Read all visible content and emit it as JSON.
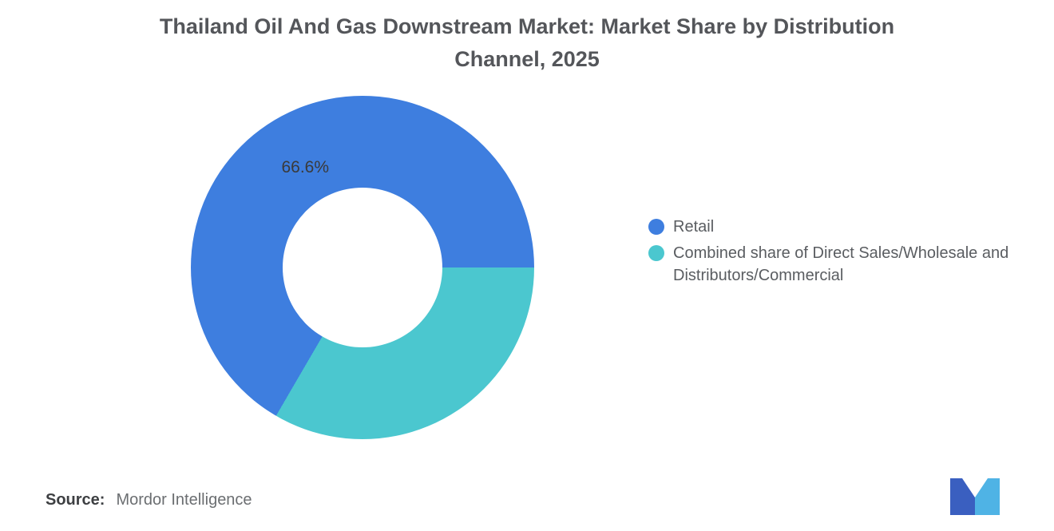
{
  "title": "Thailand Oil And Gas Downstream Market: Market Share by Distribution Channel, 2025",
  "chart_data": {
    "type": "pie",
    "donut": true,
    "title": "Thailand Oil And Gas Downstream Market: Market Share by Distribution Channel, 2025",
    "start_angle_deg": 210.24,
    "legend_position": "right",
    "segments": [
      {
        "label": "Retail",
        "value": 66.6,
        "color": "#3e7edf",
        "data_label": "66.6%"
      },
      {
        "label": "Combined share of Direct Sales/Wholesale and Distributors/Commercial",
        "value": 33.4,
        "color": "#4bc7cf",
        "data_label": ""
      }
    ]
  },
  "source": {
    "label": "Source:",
    "value": "Mordor Intelligence"
  },
  "logo": {
    "name": "mordor-intelligence-logo",
    "color_dark": "#3a5fc0",
    "color_light": "#4fb3e5"
  }
}
